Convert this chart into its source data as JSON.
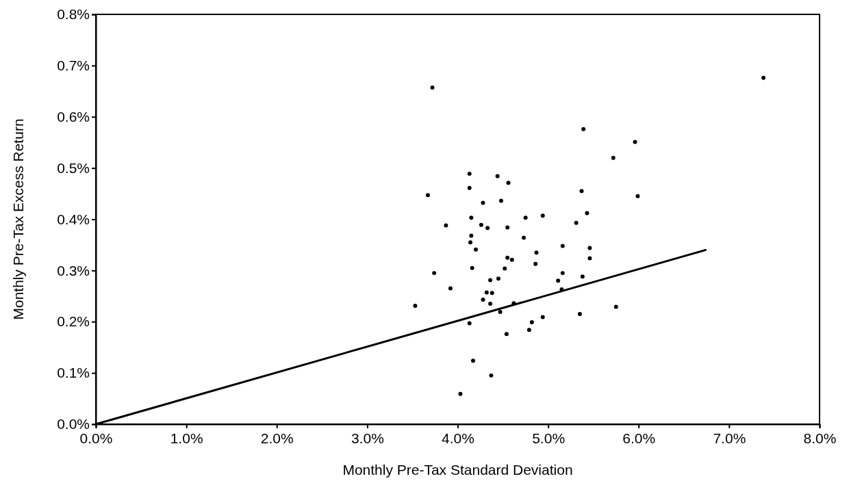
{
  "chart_data": {
    "type": "scatter",
    "xlabel": "Monthly Pre-Tax Standard Deviation",
    "ylabel": "Monthly Pre-Tax Excess Return",
    "xlim": [
      0,
      8
    ],
    "ylim": [
      0,
      0.8
    ],
    "xticks": [
      {
        "value": 0,
        "label": "0.0%"
      },
      {
        "value": 1,
        "label": "1.0%"
      },
      {
        "value": 2,
        "label": "2.0%"
      },
      {
        "value": 3,
        "label": "3.0%"
      },
      {
        "value": 4,
        "label": "4.0%"
      },
      {
        "value": 5,
        "label": "5.0%"
      },
      {
        "value": 6,
        "label": "6.0%"
      },
      {
        "value": 7,
        "label": "7.0%"
      },
      {
        "value": 8,
        "label": "8.0%"
      }
    ],
    "yticks": [
      {
        "value": 0,
        "label": "0.0%"
      },
      {
        "value": 0.1,
        "label": "0.1%"
      },
      {
        "value": 0.2,
        "label": "0.2%"
      },
      {
        "value": 0.3,
        "label": "0.3%"
      },
      {
        "value": 0.4,
        "label": "0.4%"
      },
      {
        "value": 0.5,
        "label": "0.5%"
      },
      {
        "value": 0.6,
        "label": "0.6%"
      },
      {
        "value": 0.7,
        "label": "0.7%"
      },
      {
        "value": 0.8,
        "label": "0.8%"
      }
    ],
    "grid": false,
    "marker": "circle",
    "series": [
      {
        "color": "#000000",
        "x": [
          3.72,
          4.13,
          4.44,
          4.56,
          4.13,
          3.67,
          4.28,
          4.48,
          4.15,
          4.75,
          4.94,
          3.87,
          4.26,
          4.33,
          4.55,
          4.15,
          4.73,
          4.14,
          4.2,
          4.87,
          4.55,
          4.6,
          4.86,
          4.16,
          4.52,
          3.74,
          4.45,
          4.36,
          3.92,
          4.32,
          4.38,
          3.53,
          4.28,
          4.36,
          4.47,
          4.13,
          4.94,
          4.82,
          4.79,
          4.54,
          4.17,
          4.37,
          4.03,
          4.62,
          5.39,
          5.96,
          5.72,
          5.37,
          5.99,
          5.43,
          5.31,
          5.16,
          5.46,
          5.46,
          5.16,
          5.11,
          5.38,
          5.15,
          5.75,
          5.35,
          7.38
        ],
        "values": [
          0.657,
          0.489,
          0.484,
          0.471,
          0.461,
          0.447,
          0.432,
          0.436,
          0.403,
          0.403,
          0.407,
          0.388,
          0.389,
          0.383,
          0.384,
          0.368,
          0.364,
          0.355,
          0.341,
          0.335,
          0.325,
          0.321,
          0.313,
          0.305,
          0.304,
          0.295,
          0.284,
          0.281,
          0.265,
          0.257,
          0.256,
          0.231,
          0.243,
          0.235,
          0.219,
          0.197,
          0.209,
          0.199,
          0.184,
          0.176,
          0.124,
          0.095,
          0.059,
          0.236,
          0.576,
          0.551,
          0.52,
          0.455,
          0.445,
          0.412,
          0.393,
          0.348,
          0.344,
          0.324,
          0.295,
          0.28,
          0.288,
          0.263,
          0.229,
          0.215,
          0.676
        ]
      },
      {
        "type": "line",
        "color": "#000000",
        "line_style": "solid",
        "marker": "none",
        "x": [
          0,
          6.74
        ],
        "values": [
          0,
          0.34
        ]
      }
    ]
  }
}
